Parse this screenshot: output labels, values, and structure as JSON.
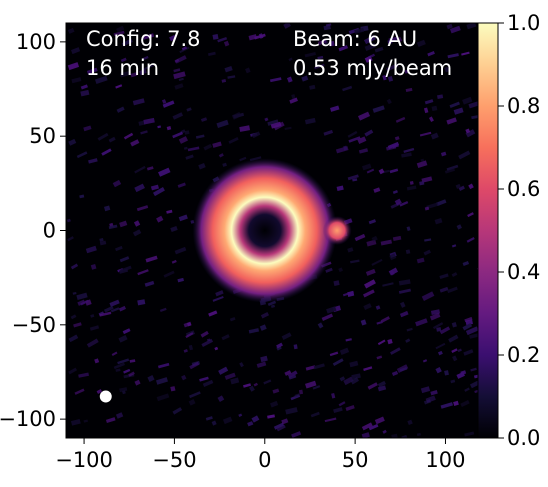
{
  "chart_data": {
    "type": "heatmap",
    "title": "",
    "xlabel": "",
    "ylabel": "",
    "xlim": [
      -110,
      118
    ],
    "ylim": [
      -110,
      110
    ],
    "x_ticks": [
      -100,
      -50,
      0,
      50,
      100
    ],
    "y_ticks": [
      100,
      50,
      0,
      -50,
      -100
    ],
    "x_tick_labels": [
      "−100",
      "−50",
      "0",
      "50",
      "100"
    ],
    "y_tick_labels": [
      "100",
      "50",
      "0",
      "−50",
      "−100"
    ],
    "colormap": "magma",
    "colorbar": {
      "range": [
        0.0,
        1.0
      ],
      "ticks": [
        0.0,
        0.2,
        0.4,
        0.6,
        0.8,
        1.0
      ],
      "tick_labels": [
        "0.0",
        "0.2",
        "0.4",
        "0.6",
        "0.8",
        "1.0"
      ]
    },
    "annotations": {
      "config": "Config: 7.8",
      "time": "16 min",
      "beam": "Beam: 6 AU",
      "noise": "0.53 mJy/beam"
    },
    "structures": {
      "ring": {
        "center": [
          0,
          0
        ],
        "inner_radius": 10,
        "peak_radius": 17,
        "outer_radius": 32,
        "peak_intensity": 1.0
      },
      "clump": {
        "center": [
          40,
          0
        ],
        "radius": 5,
        "peak_intensity": 0.7
      },
      "beam_marker": {
        "center": [
          -88,
          -88
        ],
        "diameter": 6,
        "color": "#ffffff"
      }
    },
    "background_level": 0.05,
    "grid": false
  }
}
